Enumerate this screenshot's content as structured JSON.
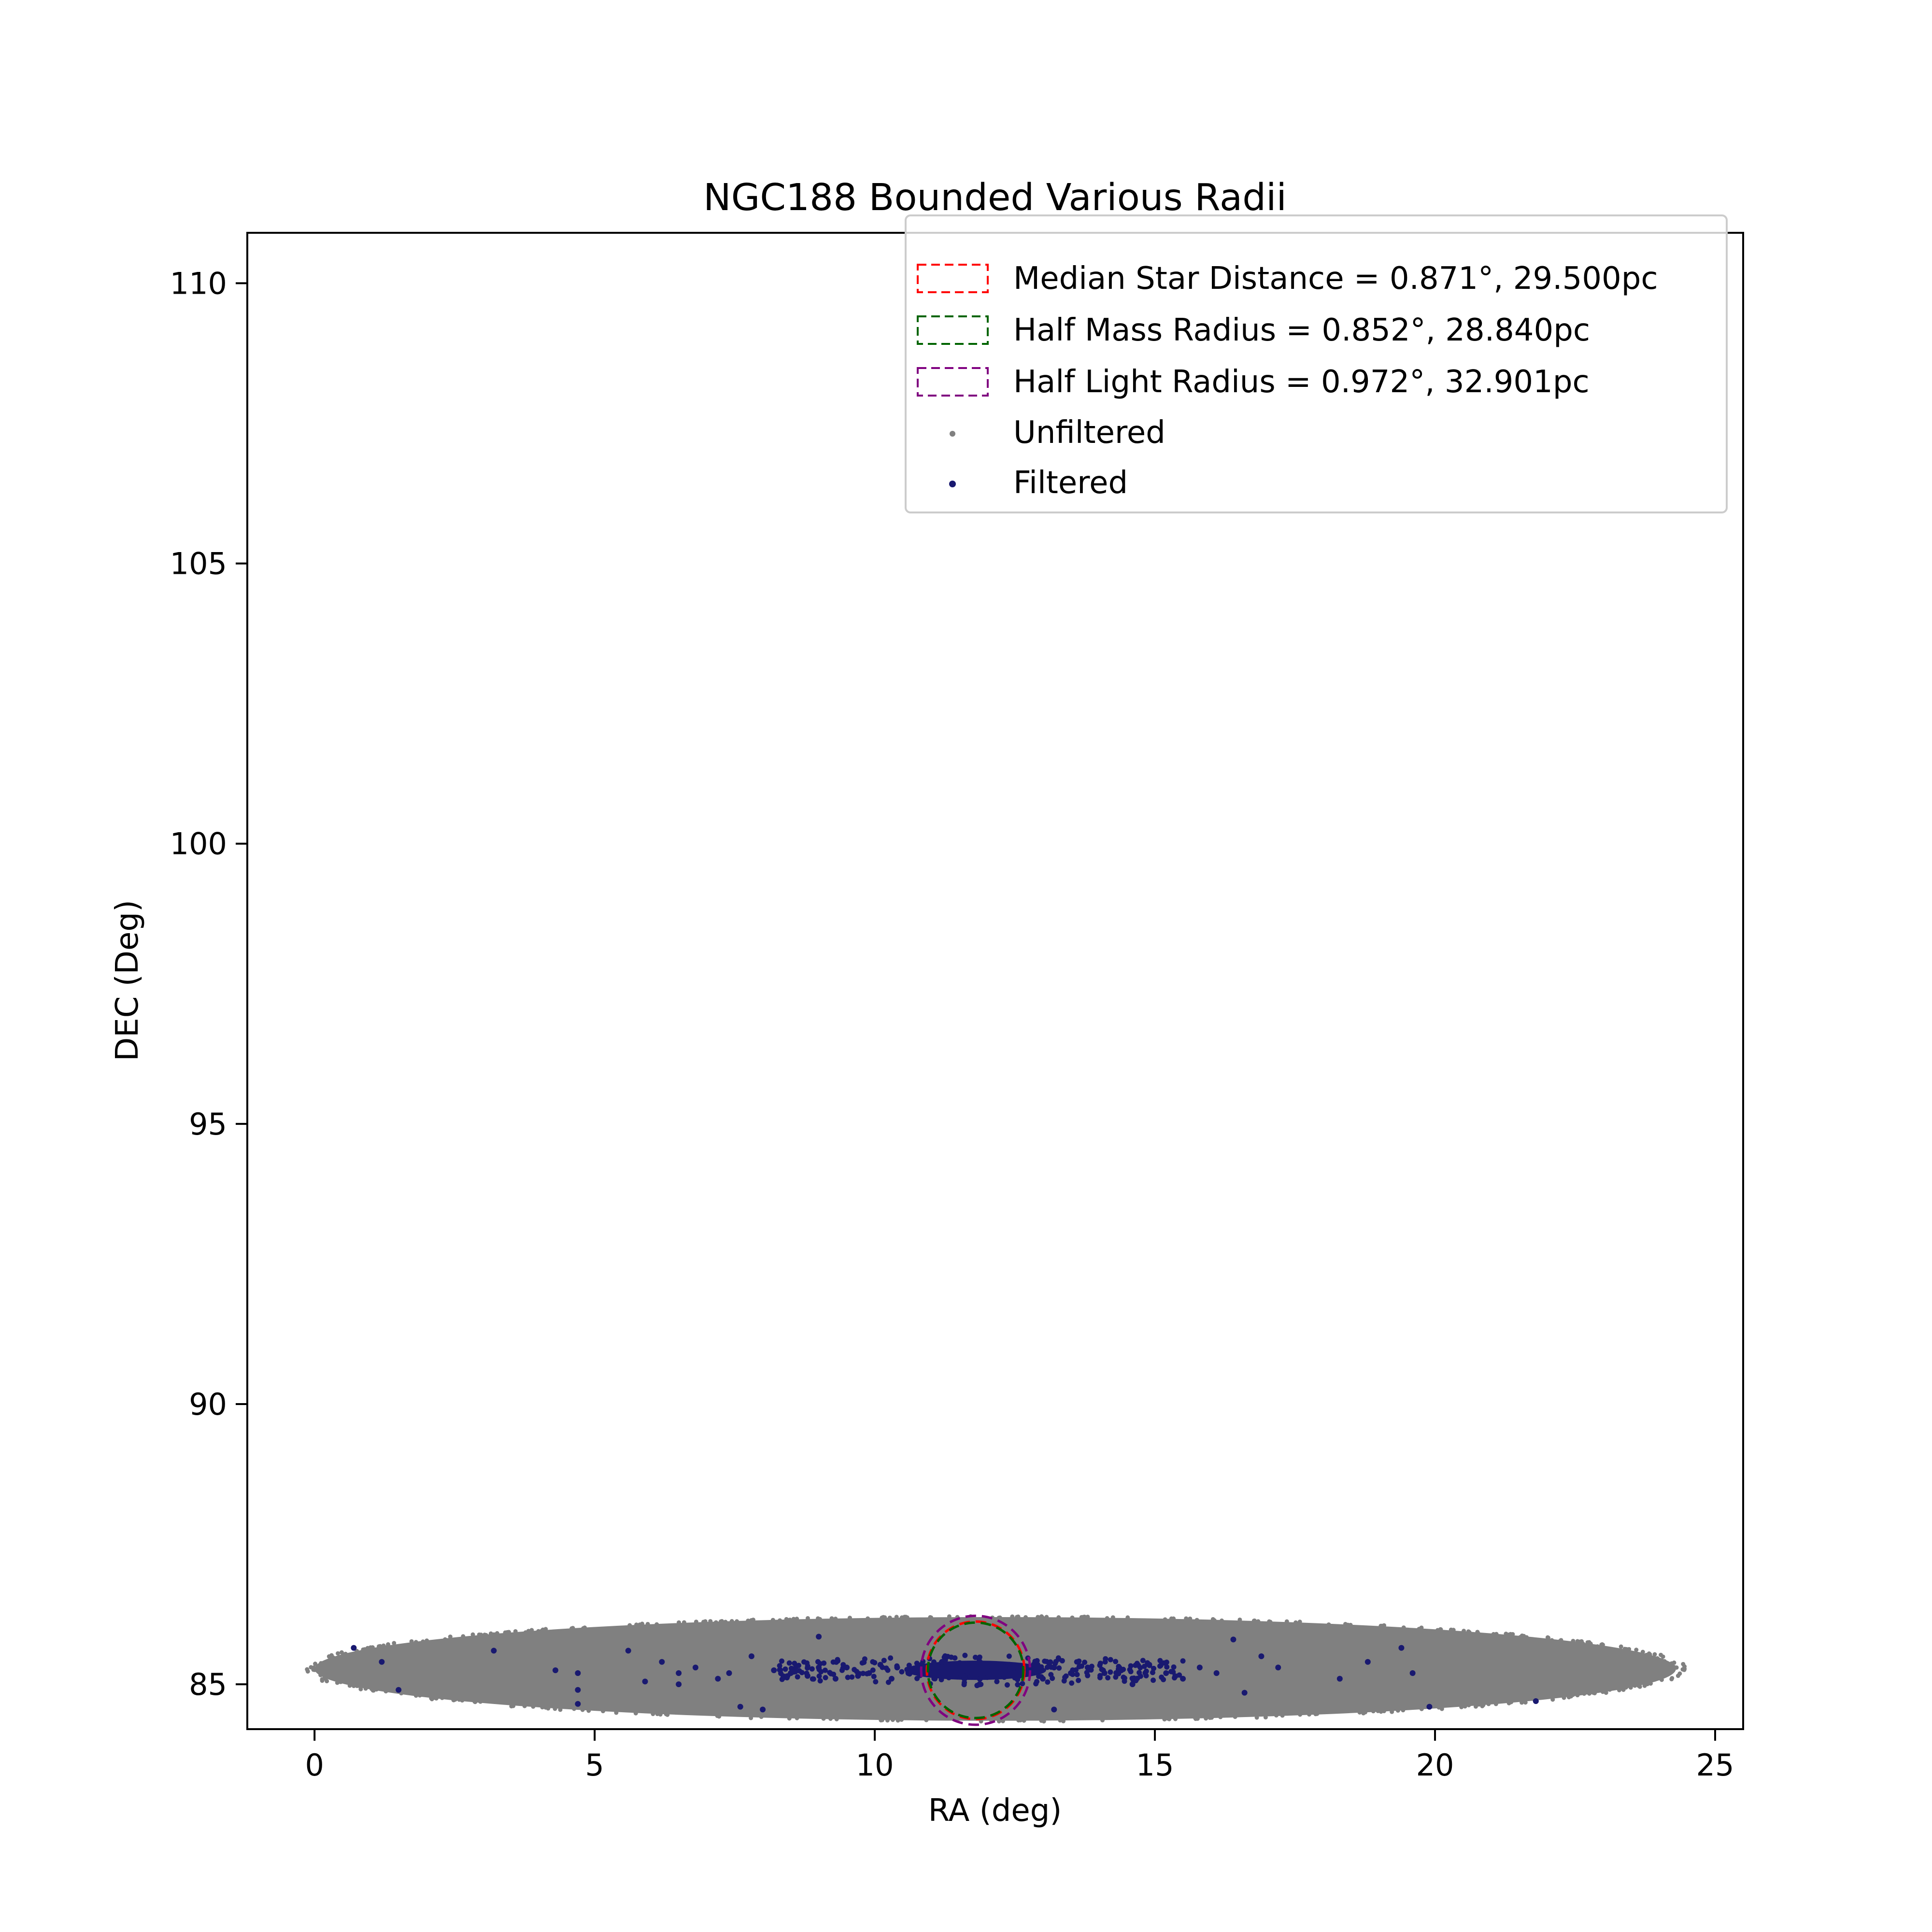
{
  "chart_data": {
    "type": "scatter",
    "title": "NGC188 Bounded Various Radii",
    "xlabel": "RA (deg)",
    "ylabel": "DEC (Deg)",
    "xlim": [
      -1.2,
      25.5
    ],
    "ylim": [
      84.2,
      110.9
    ],
    "xticks": [
      0,
      5,
      10,
      15,
      20,
      25
    ],
    "yticks": [
      85,
      90,
      95,
      100,
      105,
      110
    ],
    "grid": false,
    "legend_position": "top-right",
    "cluster_center": {
      "ra": 11.8,
      "dec": 85.25
    },
    "unfiltered_region": {
      "ra_min": 0.0,
      "ra_max": 24.3,
      "dec_min": 84.35,
      "dec_max": 86.2
    },
    "circles": [
      {
        "label": "Median Star Distance = 0.871°, 29.500pc",
        "radius_deg": 0.871,
        "radius_pc": 29.5,
        "color": "#ff0000",
        "style": "dashed"
      },
      {
        "label": "Half Mass Radius = 0.852°, 28.840pc",
        "radius_deg": 0.852,
        "radius_pc": 28.84,
        "color": "#006400",
        "style": "dashed"
      },
      {
        "label": "Half Light Radius = 0.972°, 32.901pc",
        "radius_deg": 0.972,
        "radius_pc": 32.901,
        "color": "#800080",
        "style": "dashed"
      }
    ],
    "series": [
      {
        "name": "Unfiltered",
        "color": "#808080",
        "marker": "point"
      },
      {
        "name": "Filtered",
        "color": "#191970",
        "marker": "point",
        "points": [
          [
            0.7,
            85.65
          ],
          [
            1.2,
            85.4
          ],
          [
            1.5,
            84.9
          ],
          [
            3.2,
            85.6
          ],
          [
            4.3,
            85.25
          ],
          [
            4.7,
            84.65
          ],
          [
            4.7,
            85.2
          ],
          [
            4.7,
            84.9
          ],
          [
            5.6,
            85.6
          ],
          [
            5.9,
            85.05
          ],
          [
            6.2,
            85.4
          ],
          [
            6.5,
            85.2
          ],
          [
            6.5,
            85.0
          ],
          [
            6.8,
            85.3
          ],
          [
            7.2,
            85.1
          ],
          [
            7.4,
            85.2
          ],
          [
            7.6,
            84.6
          ],
          [
            7.8,
            85.5
          ],
          [
            8.0,
            84.55
          ],
          [
            8.2,
            85.25
          ],
          [
            8.5,
            85.2
          ],
          [
            8.8,
            85.15
          ],
          [
            9.0,
            85.85
          ],
          [
            9.0,
            85.3
          ],
          [
            9.3,
            85.1
          ],
          [
            9.5,
            85.3
          ],
          [
            9.7,
            85.15
          ],
          [
            9.9,
            85.2
          ],
          [
            10.1,
            85.35
          ],
          [
            10.3,
            85.1
          ],
          [
            10.4,
            85.3
          ],
          [
            10.6,
            85.2
          ],
          [
            10.8,
            85.25
          ],
          [
            11.0,
            85.3
          ],
          [
            11.2,
            85.4
          ],
          [
            11.4,
            85.2
          ],
          [
            11.6,
            85.1
          ],
          [
            11.8,
            85.3
          ],
          [
            12.0,
            85.25
          ],
          [
            12.2,
            85.2
          ],
          [
            12.4,
            85.35
          ],
          [
            12.6,
            85.3
          ],
          [
            12.8,
            85.2
          ],
          [
            13.0,
            85.1
          ],
          [
            13.2,
            84.55
          ],
          [
            13.2,
            85.3
          ],
          [
            13.5,
            85.2
          ],
          [
            13.8,
            85.3
          ],
          [
            14.1,
            85.2
          ],
          [
            14.4,
            85.25
          ],
          [
            14.6,
            85.0
          ],
          [
            14.9,
            85.35
          ],
          [
            15.2,
            85.2
          ],
          [
            15.5,
            85.1
          ],
          [
            15.8,
            85.3
          ],
          [
            16.1,
            85.2
          ],
          [
            16.4,
            85.8
          ],
          [
            16.6,
            84.85
          ],
          [
            16.9,
            85.5
          ],
          [
            17.2,
            85.3
          ],
          [
            18.3,
            85.1
          ],
          [
            18.8,
            85.4
          ],
          [
            19.4,
            85.65
          ],
          [
            19.6,
            85.2
          ],
          [
            19.9,
            84.6
          ],
          [
            21.8,
            84.7
          ]
        ]
      }
    ]
  }
}
